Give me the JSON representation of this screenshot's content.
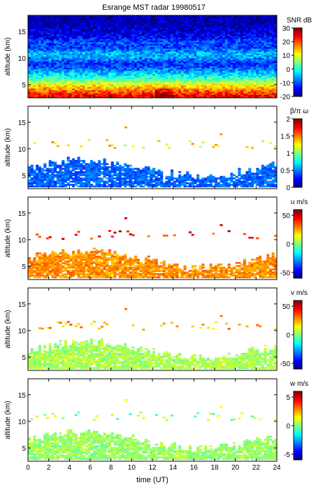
{
  "figure": {
    "title": "Esrange MST radar 19980517",
    "xlabel": "time (UT)"
  },
  "chart_data": [
    {
      "type": "heatmap",
      "id": "snr",
      "ylabel": "altitude (km)",
      "colorbar_label": "SNR dB",
      "xlim": [
        0,
        24
      ],
      "ylim": [
        2.5,
        18
      ],
      "x_ticks": [
        0,
        2,
        4,
        6,
        8,
        10,
        12,
        14,
        16,
        18,
        20,
        22,
        24
      ],
      "y_ticks": [
        5,
        10,
        15
      ],
      "clim": [
        -20,
        30
      ],
      "colorbar_ticks": [
        -20,
        -10,
        0,
        10,
        20,
        30
      ],
      "rows_bottom_to_top": [
        {
          "altitude_km": 3.0,
          "value": 24
        },
        {
          "altitude_km": 4.0,
          "value": 18
        },
        {
          "altitude_km": 5.0,
          "value": 11
        },
        {
          "altitude_km": 6.0,
          "value": 3
        },
        {
          "altitude_km": 7.0,
          "value": -3
        },
        {
          "altitude_km": 8.0,
          "value": -9
        },
        {
          "altitude_km": 9.0,
          "value": -12
        },
        {
          "altitude_km": 10.0,
          "value": -6
        },
        {
          "altitude_km": 11.0,
          "value": -5
        },
        {
          "altitude_km": 12.0,
          "value": -11
        },
        {
          "altitude_km": 13.0,
          "value": -10
        },
        {
          "altitude_km": 14.0,
          "value": -14
        },
        {
          "altitude_km": 15.0,
          "value": -16
        },
        {
          "altitude_km": 16.0,
          "value": -17
        },
        {
          "altitude_km": 17.0,
          "value": -18
        },
        {
          "altitude_km": 18.0,
          "value": -18
        }
      ],
      "coverage": "full"
    },
    {
      "type": "heatmap",
      "id": "beta",
      "ylabel": "altitude (km)",
      "colorbar_label": "β/π ω",
      "xlim": [
        0,
        24
      ],
      "ylim": [
        2.5,
        18
      ],
      "x_ticks": [
        0,
        2,
        4,
        6,
        8,
        10,
        12,
        14,
        16,
        18,
        20,
        22,
        24
      ],
      "y_ticks": [
        5,
        10,
        15
      ],
      "clim": [
        0,
        2
      ],
      "colorbar_ticks": [
        0,
        0.5,
        1,
        1.5,
        2
      ],
      "lower_layer_typical": 0.45,
      "upper_layer_typical": 1.3,
      "coverage": "sparse"
    },
    {
      "type": "heatmap",
      "id": "u",
      "ylabel": "altitude (km)",
      "colorbar_label": "u m/s",
      "xlim": [
        0,
        24
      ],
      "ylim": [
        2.5,
        18
      ],
      "x_ticks": [
        0,
        2,
        4,
        6,
        8,
        10,
        12,
        14,
        16,
        18,
        20,
        22,
        24
      ],
      "y_ticks": [
        5,
        10,
        15
      ],
      "clim": [
        -60,
        60
      ],
      "colorbar_ticks": [
        -50,
        0,
        50
      ],
      "lower_layer_typical": 28,
      "upper_layer_typical": 42,
      "coverage": "sparse"
    },
    {
      "type": "heatmap",
      "id": "v",
      "ylabel": "altitude (km)",
      "colorbar_label": "v m/s",
      "xlim": [
        0,
        24
      ],
      "ylim": [
        2.5,
        18
      ],
      "x_ticks": [
        0,
        2,
        4,
        6,
        8,
        10,
        12,
        14,
        16,
        18,
        20,
        22,
        24
      ],
      "y_ticks": [
        5,
        10,
        15
      ],
      "clim": [
        -60,
        60
      ],
      "colorbar_ticks": [
        -50,
        0,
        50
      ],
      "lower_layer_typical": 5,
      "upper_layer_typical": 22,
      "coverage": "sparse"
    },
    {
      "type": "heatmap",
      "id": "w",
      "ylabel": "altitude (km)",
      "colorbar_label": "w m/s",
      "xlim": [
        0,
        24
      ],
      "ylim": [
        2.5,
        18
      ],
      "x_ticks": [
        0,
        2,
        4,
        6,
        8,
        10,
        12,
        14,
        16,
        18,
        20,
        22,
        24
      ],
      "y_ticks": [
        5,
        10,
        15
      ],
      "clim": [
        -6,
        6
      ],
      "colorbar_ticks": [
        -5,
        0,
        5
      ],
      "lower_layer_typical": 0.3,
      "upper_layer_typical": 0.5,
      "coverage": "sparse"
    }
  ]
}
